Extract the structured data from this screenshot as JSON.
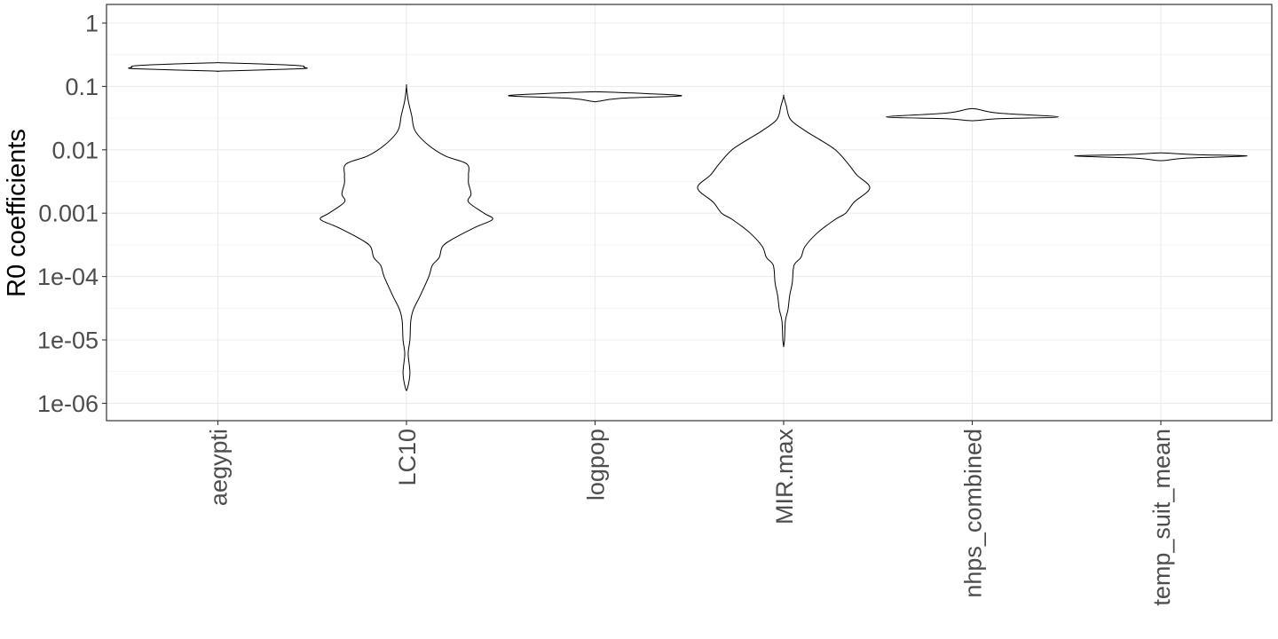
{
  "chart_data": {
    "type": "violin",
    "ylabel": "R0 coefficients",
    "xlabel": "",
    "y_scale": "log10",
    "ylim": [
      5e-07,
      2
    ],
    "y_ticks": [
      {
        "value": 1,
        "label": "1"
      },
      {
        "value": 0.1,
        "label": "0.1"
      },
      {
        "value": 0.01,
        "label": "0.01"
      },
      {
        "value": 0.001,
        "label": "0.001"
      },
      {
        "value": 0.0001,
        "label": "1e-04"
      },
      {
        "value": 1e-05,
        "label": "1e-05"
      },
      {
        "value": 1e-06,
        "label": "1e-06"
      }
    ],
    "grid": true,
    "categories": [
      "aegypti",
      "LC10",
      "logpop",
      "MIR.max",
      "nhps_combined",
      "temp_suit_mean"
    ],
    "violins": [
      {
        "category": "aegypti",
        "density": [
          [
            0.175,
            0.05
          ],
          [
            0.19,
            0.95
          ],
          [
            0.2,
            1.0
          ],
          [
            0.215,
            0.9
          ],
          [
            0.235,
            0.1
          ]
        ]
      },
      {
        "category": "LC10",
        "density": [
          [
            1.7e-06,
            0.01
          ],
          [
            3e-06,
            0.04
          ],
          [
            6e-06,
            0.02
          ],
          [
            1e-05,
            0.04
          ],
          [
            2e-05,
            0.05
          ],
          [
            3e-05,
            0.08
          ],
          [
            5e-05,
            0.16
          ],
          [
            0.0001,
            0.26
          ],
          [
            0.00015,
            0.3
          ],
          [
            0.0002,
            0.38
          ],
          [
            0.0003,
            0.42
          ],
          [
            0.0004,
            0.55
          ],
          [
            0.0006,
            0.8
          ],
          [
            0.0008,
            1.0
          ],
          [
            0.001,
            0.9
          ],
          [
            0.0015,
            0.72
          ],
          [
            0.002,
            0.75
          ],
          [
            0.003,
            0.72
          ],
          [
            0.004,
            0.72
          ],
          [
            0.006,
            0.7
          ],
          [
            0.008,
            0.45
          ],
          [
            0.012,
            0.25
          ],
          [
            0.02,
            0.1
          ],
          [
            0.035,
            0.06
          ],
          [
            0.06,
            0.02
          ],
          [
            0.1,
            0.0
          ]
        ]
      },
      {
        "category": "logpop",
        "density": [
          [
            0.058,
            0.03
          ],
          [
            0.065,
            0.3
          ],
          [
            0.071,
            1.0
          ],
          [
            0.077,
            0.6
          ],
          [
            0.082,
            0.05
          ]
        ]
      },
      {
        "category": "MIR.max",
        "density": [
          [
            8e-06,
            0.0
          ],
          [
            1e-05,
            0.01
          ],
          [
            2e-05,
            0.02
          ],
          [
            3e-05,
            0.05
          ],
          [
            5e-05,
            0.07
          ],
          [
            8e-05,
            0.1
          ],
          [
            0.00015,
            0.12
          ],
          [
            0.0002,
            0.2
          ],
          [
            0.0003,
            0.25
          ],
          [
            0.0005,
            0.4
          ],
          [
            0.0008,
            0.6
          ],
          [
            0.001,
            0.72
          ],
          [
            0.0015,
            0.82
          ],
          [
            0.0025,
            1.0
          ],
          [
            0.004,
            0.85
          ],
          [
            0.006,
            0.75
          ],
          [
            0.01,
            0.6
          ],
          [
            0.015,
            0.4
          ],
          [
            0.02,
            0.25
          ],
          [
            0.03,
            0.08
          ],
          [
            0.05,
            0.03
          ],
          [
            0.07,
            0.0
          ]
        ]
      },
      {
        "category": "nhps_combined",
        "density": [
          [
            0.029,
            0.05
          ],
          [
            0.031,
            0.3
          ],
          [
            0.033,
            1.0
          ],
          [
            0.038,
            0.3
          ],
          [
            0.044,
            0.05
          ]
        ]
      },
      {
        "category": "temp_suit_mean",
        "density": [
          [
            0.0068,
            0.05
          ],
          [
            0.0074,
            0.3
          ],
          [
            0.008,
            1.0
          ],
          [
            0.0084,
            0.4
          ],
          [
            0.0089,
            0.05
          ]
        ]
      }
    ]
  }
}
